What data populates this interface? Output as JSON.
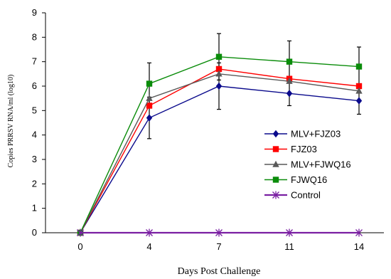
{
  "chart_data": {
    "type": "line",
    "title": "",
    "xlabel": "Days Post Challenge",
    "ylabel": "Copies PRRSV RNA/ml (log10)",
    "categories": [
      "0",
      "4",
      "7",
      "11",
      "14"
    ],
    "ylim": [
      0,
      9
    ],
    "yticks": [
      "0",
      "1",
      "2",
      "3",
      "4",
      "5",
      "6",
      "7",
      "8",
      "9"
    ],
    "grid": false,
    "legend_position": "bottom-right",
    "series": [
      {
        "name": "MLV+FJZ03",
        "color": "#0a0a8c",
        "marker": "diamond",
        "values": [
          0,
          4.7,
          6.0,
          5.7,
          5.4
        ],
        "errors": [
          0,
          0.85,
          0.95,
          0.5,
          0.55
        ]
      },
      {
        "name": "FJZ03",
        "color": "#ff0000",
        "marker": "square",
        "values": [
          0,
          5.2,
          6.7,
          6.3,
          6.0
        ],
        "errors": [
          0,
          0.0,
          0.0,
          0.0,
          0.0
        ]
      },
      {
        "name": "MLV+FJWQ16",
        "color": "#595959",
        "marker": "triangle",
        "values": [
          0,
          5.5,
          6.5,
          6.2,
          5.8
        ],
        "errors": [
          0,
          0.0,
          0.0,
          0.0,
          0.0
        ]
      },
      {
        "name": "FJWQ16",
        "color": "#0a8c0a",
        "marker": "square",
        "values": [
          0,
          6.1,
          7.2,
          7.0,
          6.8
        ],
        "errors": [
          0,
          0.85,
          0.95,
          0.85,
          0.8
        ]
      },
      {
        "name": "Control",
        "color": "#7a1fa2",
        "marker": "asterisk",
        "values": [
          0,
          0,
          0,
          0,
          0
        ],
        "errors": [
          0,
          0,
          0,
          0,
          0
        ]
      }
    ]
  }
}
